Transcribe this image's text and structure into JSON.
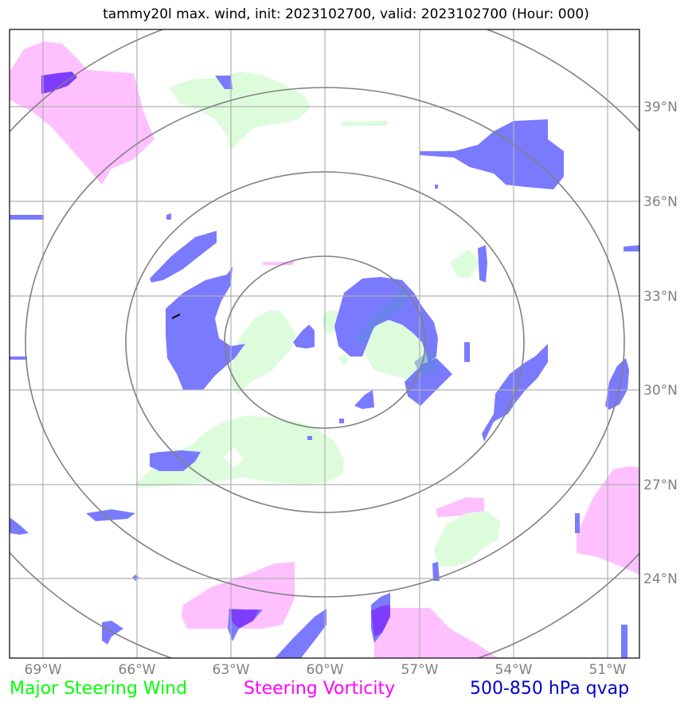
{
  "header": {
    "title": "tammy20l max. wind, init: 2023102700, valid: 2023102700 (Hour: 000)"
  },
  "axes": {
    "longitude_labels": [
      "69°W",
      "66°W",
      "63°W",
      "60°W",
      "57°W",
      "54°W",
      "51°W"
    ],
    "latitude_labels": [
      "39°N",
      "36°N",
      "33°N",
      "30°N",
      "27°N",
      "24°N"
    ]
  },
  "legend": {
    "items": [
      {
        "label": "Major Steering Wind",
        "color": "#00ff00"
      },
      {
        "label": "Steering Vorticity",
        "color": "#ff00ff"
      },
      {
        "label": "500-850 hPa qvap",
        "color": "#0000cc"
      }
    ]
  },
  "colors": {
    "green_fill": "#dcfcdc",
    "magenta_fill": "#ffc0ff",
    "blue_fill": "#7a7aff",
    "purple_fill": "#7e3cff",
    "grid": "#b0b0b0",
    "range_rings": "#808080"
  }
}
